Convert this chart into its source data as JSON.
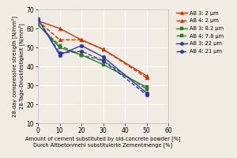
{
  "x": [
    0,
    10,
    20,
    30,
    50
  ],
  "series": [
    {
      "label": "AB 3: 2 μm",
      "y": [
        64,
        60,
        54,
        49,
        35
      ],
      "color": "#cc3300",
      "linestyle": "-",
      "marker": "^",
      "markersize": 3.5
    },
    {
      "label": "AB 4: 2 μm",
      "y": [
        64,
        54,
        54,
        49,
        34
      ],
      "color": "#cc3300",
      "linestyle": "--",
      "marker": "^",
      "markersize": 3.5
    },
    {
      "label": "AB 3: 8.2 μm",
      "y": [
        62,
        50,
        46,
        41,
        29
      ],
      "color": "#2e7d2e",
      "linestyle": "-",
      "marker": "s",
      "markersize": 3.5
    },
    {
      "label": "AB 4: 7.8 μm",
      "y": [
        62,
        51,
        46,
        43,
        28
      ],
      "color": "#2e7d2e",
      "linestyle": "--",
      "marker": "s",
      "markersize": 3.5
    },
    {
      "label": "AB 3: 22 μm",
      "y": [
        65,
        46,
        51,
        45,
        26
      ],
      "color": "#3333aa",
      "linestyle": "-",
      "marker": "o",
      "markersize": 3.5
    },
    {
      "label": "AB 4: 21 μm",
      "y": [
        65,
        47,
        48,
        43,
        25
      ],
      "color": "#3333aa",
      "linestyle": "--",
      "marker": "o",
      "markersize": 3.5
    }
  ],
  "xlabel1": "Amount of cement substituted by old-concrete powder [%]",
  "xlabel2": "Durch Altbetonmehl substituierte Zementmenge [%]",
  "ylabel1": "28-day compressive strength [N/mm²]",
  "ylabel2": "28-Tage-Druckfestigkeit [N/mm²]",
  "xlim": [
    0,
    60
  ],
  "ylim": [
    10,
    70
  ],
  "xticks": [
    0,
    10,
    20,
    30,
    40,
    50,
    60
  ],
  "yticks": [
    10,
    20,
    30,
    40,
    50,
    60,
    70
  ],
  "bg_color": "#f0ece4",
  "grid_color": "#e0dbd0",
  "linewidth": 1.0,
  "legend_fontsize": 4.8,
  "tick_fontsize": 5.5,
  "label_fontsize": 4.8
}
